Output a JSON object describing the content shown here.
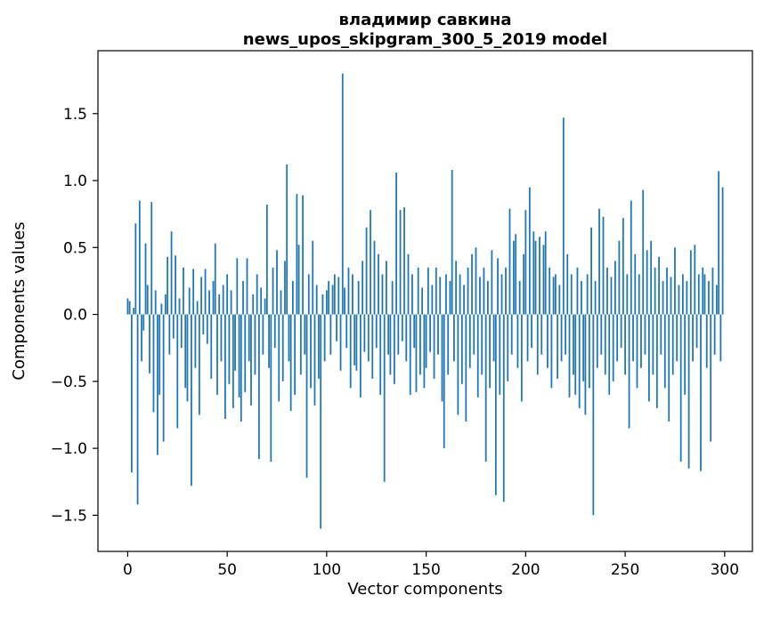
{
  "chart_data": {
    "type": "bar",
    "title": "владимир савкина",
    "subtitle": "news_upos_skipgram_300_5_2019 model",
    "xlabel": "Vector components",
    "ylabel": "Components values",
    "legend": null,
    "grid": false,
    "bar_color": "#1f77b4",
    "spine_color": "#000000",
    "bar_width": 0.8,
    "xlim": [
      -14.95,
      313.95
    ],
    "ylim": [
      -1.77,
      1.97
    ],
    "xticks": [
      {
        "value": 0,
        "label": "0"
      },
      {
        "value": 50,
        "label": "50"
      },
      {
        "value": 100,
        "label": "100"
      },
      {
        "value": 150,
        "label": "150"
      },
      {
        "value": 200,
        "label": "200"
      },
      {
        "value": 250,
        "label": "250"
      },
      {
        "value": 300,
        "label": "300"
      }
    ],
    "yticks": [
      {
        "value": -1.5,
        "label": "−1.5"
      },
      {
        "value": -1.0,
        "label": "−1.0"
      },
      {
        "value": -0.5,
        "label": "−0.5"
      },
      {
        "value": 0.0,
        "label": "0.0"
      },
      {
        "value": 0.5,
        "label": "0.5"
      },
      {
        "value": 1.0,
        "label": "1.0"
      },
      {
        "value": 1.5,
        "label": "1.5"
      }
    ],
    "x_start": 0,
    "values": [
      0.12,
      0.1,
      -1.18,
      0.05,
      0.68,
      -1.42,
      0.85,
      -0.35,
      -0.12,
      0.53,
      0.22,
      -0.44,
      0.84,
      -0.73,
      0.18,
      -1.05,
      -0.6,
      0.08,
      -0.95,
      0.15,
      0.43,
      -0.3,
      0.62,
      -0.18,
      0.44,
      -0.85,
      0.12,
      -0.25,
      0.35,
      -0.55,
      -0.65,
      0.2,
      -1.28,
      0.34,
      -0.4,
      0.1,
      -0.75,
      0.28,
      -0.15,
      0.34,
      -0.22,
      0.18,
      -0.48,
      0.25,
      0.53,
      -0.6,
      0.15,
      -0.35,
      0.22,
      -0.78,
      0.3,
      -0.52,
      0.18,
      -0.7,
      -0.42,
      0.42,
      -0.62,
      -0.8,
      0.25,
      -0.58,
      0.42,
      -0.35,
      -0.68,
      0.15,
      -0.45,
      0.3,
      -1.08,
      0.2,
      -0.3,
      0.12,
      0.82,
      -0.4,
      -1.1,
      0.35,
      -0.25,
      0.48,
      -0.65,
      0.18,
      -0.5,
      0.4,
      1.12,
      -0.35,
      -0.72,
      0.25,
      -0.6,
      0.9,
      0.52,
      -0.45,
      0.89,
      -0.3,
      -1.22,
      0.3,
      -0.55,
      0.55,
      -0.68,
      0.22,
      -0.48,
      -1.6,
      0.15,
      -0.35,
      0.18,
      0.25,
      -0.3,
      0.22,
      0.3,
      -0.2,
      0.28,
      -0.42,
      1.8,
      0.2,
      -0.25,
      0.35,
      -0.55,
      0.3,
      -0.38,
      -0.42,
      0.25,
      -0.62,
      0.4,
      -0.28,
      0.65,
      -0.35,
      0.78,
      -0.48,
      0.55,
      -0.25,
      0.45,
      -0.6,
      0.3,
      -1.25,
      0.4,
      -0.3,
      -0.45,
      0.25,
      -0.52,
      1.06,
      -0.3,
      0.78,
      -0.2,
      0.8,
      -0.35,
      0.45,
      -0.6,
      0.3,
      -0.25,
      -0.58,
      0.35,
      -0.45,
      0.2,
      -0.55,
      -0.4,
      0.35,
      -0.28,
      0.22,
      -0.48,
      0.35,
      -0.3,
      0.28,
      -0.65,
      -1.0,
      0.3,
      -0.45,
      0.25,
      1.08,
      -0.35,
      0.4,
      -0.75,
      0.3,
      -0.52,
      0.22,
      -0.8,
      0.35,
      -0.4,
      0.45,
      -0.3,
      0.5,
      -0.62,
      0.28,
      -0.45,
      0.35,
      -1.1,
      0.25,
      -0.55,
      0.48,
      -0.35,
      -1.35,
      0.42,
      -0.6,
      0.3,
      -1.4,
      0.35,
      -0.5,
      0.79,
      -0.3,
      0.55,
      0.6,
      -0.4,
      0.25,
      -0.65,
      0.45,
      0.78,
      -0.35,
      0.95,
      -0.25,
      0.62,
      0.55,
      -0.45,
      0.58,
      -0.3,
      0.52,
      0.62,
      -0.4,
      0.35,
      -0.55,
      0.28,
      0.3,
      -0.48,
      0.22,
      -0.35,
      1.47,
      -0.3,
      0.45,
      -0.62,
      0.3,
      -0.45,
      -0.6,
      0.35,
      -0.7,
      0.25,
      -0.5,
      -0.75,
      0.3,
      -0.55,
      0.65,
      -1.5,
      0.25,
      -0.4,
      0.79,
      -0.3,
      0.73,
      -0.45,
      0.35,
      -0.6,
      0.28,
      -0.5,
      0.4,
      -0.35,
      0.55,
      -0.25,
      0.72,
      -0.45,
      0.3,
      -0.85,
      0.85,
      -0.35,
      0.45,
      -0.55,
      0.3,
      -0.4,
      0.93,
      -0.3,
      0.48,
      -0.65,
      0.55,
      -0.45,
      0.35,
      -0.7,
      0.43,
      -0.3,
      0.25,
      -0.55,
      0.35,
      -0.8,
      0.28,
      -0.45,
      0.5,
      -0.35,
      0.22,
      -1.1,
      0.3,
      -0.6,
      0.25,
      -1.15,
      0.48,
      -0.35,
      0.52,
      -0.25,
      0.3,
      -1.17,
      0.35,
      0.3,
      -0.4,
      0.25,
      -0.95,
      0.35,
      -0.3,
      0.22,
      1.07,
      -0.35,
      0.95
    ]
  }
}
